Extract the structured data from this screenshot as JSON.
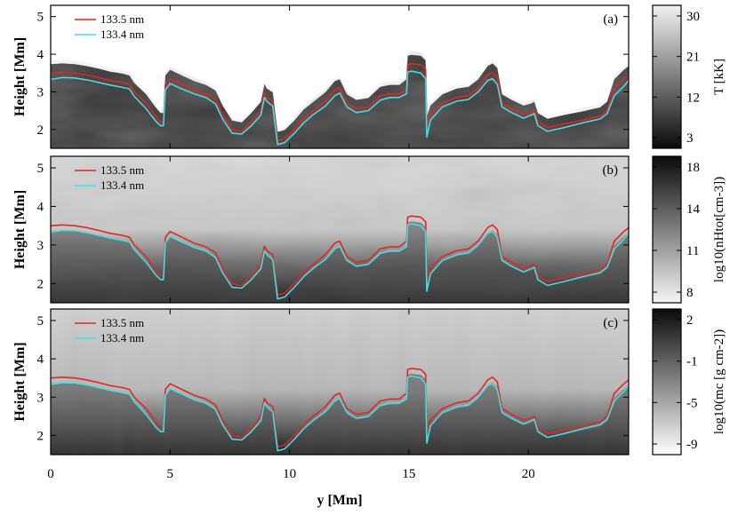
{
  "chart_data": {
    "type": "line",
    "xlabel": "y [Mm]",
    "xlim": [
      0,
      24.2
    ],
    "x_ticks": [
      "0",
      "5",
      "10",
      "15",
      "20"
    ],
    "panels": [
      {
        "label": "(a)",
        "ylabel": "Height [Mm]",
        "ylim": [
          1.5,
          5.3
        ],
        "y_ticks": [
          "2",
          "3",
          "4",
          "5"
        ],
        "background": "temperature",
        "colorbar": {
          "label": "T [kK]",
          "ticks": [
            "30",
            "21",
            "12",
            "3"
          ],
          "gradient": [
            "#f2f2f2",
            "#0a0a0a"
          ]
        },
        "legend": [
          "133.5 nm",
          "133.4 nm"
        ]
      },
      {
        "label": "(b)",
        "ylabel": "Height [Mm]",
        "ylim": [
          1.5,
          5.3
        ],
        "y_ticks": [
          "2",
          "3",
          "4",
          "5"
        ],
        "background": "hydrogen density",
        "colorbar": {
          "label": "log10(nHtot[cm-3])",
          "ticks": [
            "18",
            "14",
            "11",
            "8"
          ],
          "gradient": [
            "#0a0a0a",
            "#f5f5f5"
          ]
        },
        "legend": [
          "133.5 nm",
          "133.4 nm"
        ]
      },
      {
        "label": "(c)",
        "ylabel": "Height [Mm]",
        "ylim": [
          1.5,
          5.3
        ],
        "y_ticks": [
          "2",
          "3",
          "4",
          "5"
        ],
        "background": "column mass",
        "colorbar": {
          "label": "log10(mc [g cm-2])",
          "ticks": [
            "2",
            "-1",
            "-5",
            "-9"
          ],
          "gradient": [
            "#0a0a0a",
            "#ffffff"
          ]
        },
        "legend": [
          "133.5 nm",
          "133.4 nm"
        ]
      }
    ],
    "series": [
      {
        "name": "133.5 nm",
        "color": "#e8241c",
        "x": [
          0,
          0.5,
          1,
          1.5,
          2,
          2.5,
          3,
          3.3,
          3.5,
          4,
          4.4,
          4.6,
          4.72,
          4.8,
          5,
          5.5,
          6,
          6.5,
          6.9,
          7.2,
          7.6,
          8,
          8.4,
          8.8,
          8.95,
          9.05,
          9.3,
          9.5,
          9.8,
          10.2,
          10.6,
          11,
          11.5,
          11.9,
          12.1,
          12.4,
          12.8,
          13.3,
          13.8,
          14.2,
          14.6,
          14.9,
          14.95,
          15.1,
          15.5,
          15.7,
          15.75,
          15.9,
          16.4,
          17,
          17.5,
          17.9,
          18.3,
          18.5,
          18.7,
          18.9,
          19.3,
          19.8,
          20.1,
          20.25,
          20.4,
          20.8,
          21.5,
          22.3,
          23,
          23.3,
          23.6,
          24,
          24.2
        ],
        "y": [
          3.5,
          3.52,
          3.5,
          3.45,
          3.38,
          3.3,
          3.25,
          3.2,
          3.0,
          2.7,
          2.35,
          2.2,
          2.2,
          3.2,
          3.35,
          3.2,
          3.05,
          2.95,
          2.8,
          2.4,
          2.0,
          1.95,
          2.2,
          2.5,
          2.97,
          2.85,
          2.75,
          1.7,
          1.75,
          2.0,
          2.3,
          2.5,
          2.75,
          3.05,
          3.1,
          2.7,
          2.55,
          2.6,
          2.9,
          2.95,
          2.95,
          3.1,
          3.72,
          3.75,
          3.72,
          3.6,
          2.1,
          2.4,
          2.7,
          2.85,
          2.9,
          3.1,
          3.45,
          3.52,
          3.4,
          2.7,
          2.55,
          2.4,
          2.45,
          2.5,
          2.2,
          2.05,
          2.15,
          2.25,
          2.35,
          2.5,
          3.1,
          3.35,
          3.45
        ]
      },
      {
        "name": "133.4 nm",
        "color": "#3fe0e6",
        "x": [
          0,
          0.5,
          1,
          1.5,
          2,
          2.5,
          3,
          3.3,
          3.5,
          4,
          4.4,
          4.6,
          4.72,
          4.8,
          5,
          5.5,
          6,
          6.5,
          6.9,
          7.2,
          7.6,
          8,
          8.4,
          8.8,
          8.95,
          9.05,
          9.3,
          9.5,
          9.8,
          10.2,
          10.6,
          11,
          11.5,
          11.9,
          12.1,
          12.4,
          12.8,
          13.3,
          13.8,
          14.2,
          14.6,
          14.9,
          14.95,
          15.1,
          15.5,
          15.7,
          15.75,
          15.9,
          16.4,
          17,
          17.5,
          17.9,
          18.3,
          18.5,
          18.7,
          18.9,
          19.3,
          19.8,
          20.1,
          20.25,
          20.4,
          20.8,
          21.5,
          22.3,
          23,
          23.3,
          23.6,
          24,
          24.2
        ],
        "y": [
          3.33,
          3.38,
          3.37,
          3.32,
          3.25,
          3.18,
          3.12,
          3.08,
          2.88,
          2.55,
          2.22,
          2.1,
          2.1,
          3.05,
          3.22,
          3.08,
          2.95,
          2.85,
          2.68,
          2.28,
          1.9,
          1.88,
          2.1,
          2.38,
          2.85,
          2.75,
          2.62,
          1.6,
          1.65,
          1.9,
          2.18,
          2.4,
          2.62,
          2.9,
          2.97,
          2.6,
          2.45,
          2.5,
          2.78,
          2.85,
          2.85,
          2.95,
          3.52,
          3.55,
          3.5,
          3.35,
          1.8,
          2.25,
          2.6,
          2.75,
          2.8,
          3.0,
          3.3,
          3.35,
          3.2,
          2.6,
          2.45,
          2.3,
          2.38,
          2.42,
          2.1,
          1.95,
          2.05,
          2.18,
          2.28,
          2.42,
          2.9,
          3.15,
          3.3
        ]
      }
    ]
  }
}
